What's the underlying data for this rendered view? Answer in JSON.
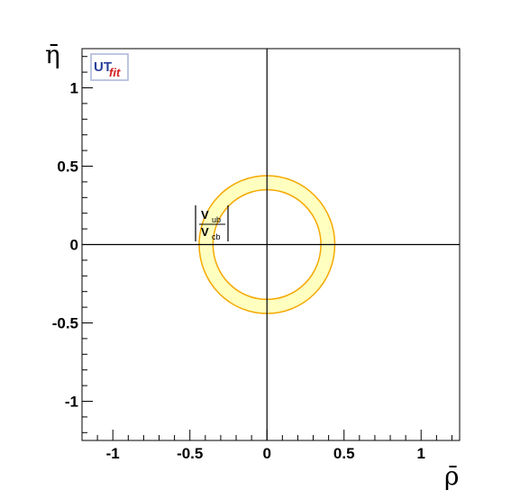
{
  "chart_data": {
    "type": "contour",
    "xlabel": "ρ̄",
    "ylabel": "η̄",
    "xlim": [
      -1.2,
      1.25
    ],
    "ylim": [
      -1.25,
      1.25
    ],
    "x_ticks": [
      -1,
      -0.5,
      0,
      0.5,
      1
    ],
    "x_tick_labels": [
      "-1",
      "-0.5",
      "0",
      "0.5",
      "1"
    ],
    "y_ticks": [
      -1,
      -0.5,
      0,
      0.5,
      1
    ],
    "y_tick_labels": [
      "-1",
      "-0.5",
      "0",
      "0.5",
      "1"
    ],
    "axes_lines": {
      "x": 0,
      "y": 0
    },
    "constraint": {
      "label": {
        "numerator": "V",
        "numerator_sub": "ub",
        "denominator": "V",
        "denominator_sub": "cb"
      },
      "center": [
        0,
        0
      ],
      "inner_radius": 0.35,
      "outer_radius": 0.44,
      "fill_color": "#ffffc0",
      "edge_color": "#f5a800"
    },
    "grid": false
  },
  "logo": {
    "part1": "UT",
    "part2": "fit"
  }
}
